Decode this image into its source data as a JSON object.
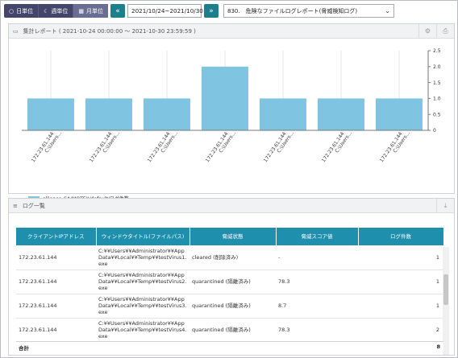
{
  "toolbar": {
    "units": [
      {
        "label": "日単位",
        "icon": "circle-outline-icon"
      },
      {
        "label": "週単位",
        "icon": "moon-icon"
      },
      {
        "label": "月単位",
        "icon": "calendar-icon"
      }
    ],
    "prev_icon": "double-chevron-left-icon",
    "next_icon": "double-chevron-right-icon",
    "date_range": "2021/10/24~2021/10/30",
    "report_selected": "830.　危険なファイルログレポート(脅威検知ログ)"
  },
  "summary_panel": {
    "title": "集計レポート ( 2021-10-24 00:00:00 ～ 2021-10-30 23:59:59 )",
    "icon": "chart-icon",
    "tools": [
      "gear-icon",
      "export-icon"
    ]
  },
  "chart_data": {
    "type": "bar",
    "categories": [
      "172.23.61.144 C:\\Users...",
      "172.23.61.144 C:\\Users...",
      "172.23.61.144 C:\\Users...",
      "172.23.61.144 C:\\Users...",
      "172.23.61.144 C:\\Users...",
      "172.23.61.144 C:\\Users...",
      "172.23.61.144 C:\\Users..."
    ],
    "series": [
      {
        "name": "alliance_SA/MOTEX/default/ログ件数",
        "values": [
          1,
          1,
          1,
          2,
          1,
          1,
          1
        ]
      }
    ],
    "ylim": [
      0,
      2.5
    ],
    "yticks": [
      "0",
      "0.5",
      "1.0",
      "1.5",
      "2.0",
      "2.5"
    ],
    "ytick_values": [
      0,
      0.5,
      1.0,
      1.5,
      2.0,
      2.5
    ],
    "y_axis_side": "right",
    "bar_color": "#7fc4e0",
    "legend_position": "bottom-left"
  },
  "log_panel": {
    "title": "ログ一覧",
    "icon": "list-icon",
    "tool_icon": "download-icon",
    "columns": [
      "クライアントIPアドレス",
      "ウィンドウタイトル(ファイルパス)",
      "脅威状態",
      "脅威スコア値",
      "ログ件数"
    ],
    "rows": [
      [
        "172.23.61.144",
        "C:¥¥Users¥¥Administrator¥¥AppData¥¥Local¥¥Temp¥¥testVirus1.exe",
        "cleared (削除済み)",
        "-",
        "1"
      ],
      [
        "172.23.61.144",
        "C:¥¥Users¥¥Administrator¥¥AppData¥¥Local¥¥Temp¥¥testVirus2.exe",
        "quarantined (隔離済み)",
        "78.3",
        "1"
      ],
      [
        "172.23.61.144",
        "C:¥¥Users¥¥Administrator¥¥AppData¥¥Local¥¥Temp¥¥testVirus3.exe",
        "quarantined (隔離済み)",
        "8.7",
        "1"
      ],
      [
        "172.23.61.144",
        "C:¥¥Users¥¥Administrator¥¥AppData¥¥Local¥¥Temp¥¥testVirus4.exe",
        "quarantined (隔離済み)",
        "78.3",
        "2"
      ]
    ],
    "total_label": "合計",
    "total_value": "8"
  }
}
